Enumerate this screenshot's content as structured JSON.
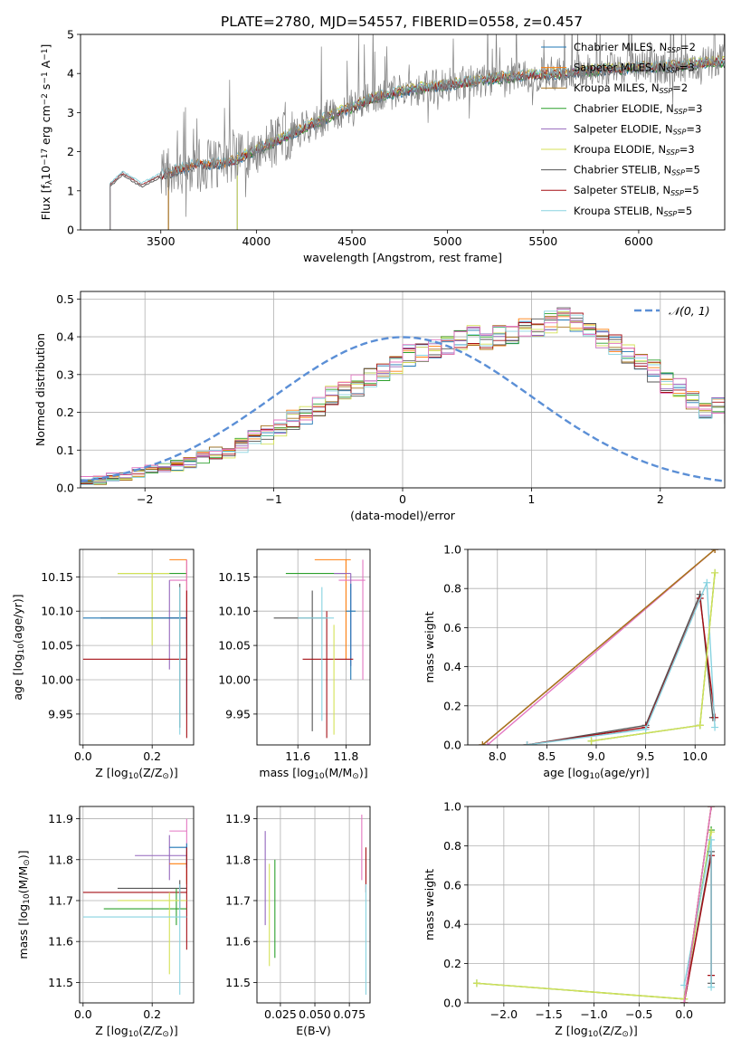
{
  "figure": {
    "title": "PLATE=2780, MJD=54557, FIBERID=0558, z=0.457"
  },
  "chart_data": [
    {
      "id": "spectrum",
      "type": "line",
      "xlabel": "wavelength [Angstrom, rest frame]",
      "ylabel_parts": [
        "Flux [f",
        "λ",
        "10",
        "−17",
        " erg cm",
        "−2",
        " s",
        "−1",
        " A",
        "−1",
        "]"
      ],
      "xlim": [
        3080,
        6450
      ],
      "ylim": [
        0,
        5
      ],
      "xticks": [
        3500,
        4000,
        4500,
        5000,
        5500,
        6000
      ],
      "yticks": [
        0,
        1,
        2,
        3,
        4,
        5
      ],
      "grid": false,
      "legend_position": "right",
      "data_trace": {
        "name": "",
        "color": "#808080",
        "continuum_anchors": [
          [
            3235,
            1.15
          ],
          [
            3300,
            1.45
          ],
          [
            3400,
            1.15
          ],
          [
            3500,
            1.4
          ],
          [
            3700,
            1.7
          ],
          [
            3850,
            1.7
          ],
          [
            4000,
            2.05
          ],
          [
            4200,
            2.5
          ],
          [
            4400,
            2.95
          ],
          [
            4600,
            3.35
          ],
          [
            4800,
            3.6
          ],
          [
            5000,
            3.7
          ],
          [
            5200,
            3.85
          ],
          [
            5400,
            3.95
          ],
          [
            5600,
            4.0
          ],
          [
            5800,
            4.1
          ],
          [
            6000,
            4.15
          ],
          [
            6200,
            4.2
          ],
          [
            6400,
            4.3
          ]
        ],
        "noise_start": 3500
      },
      "series": [
        {
          "name": "Chabrier MILES, N",
          "sub": "SSP",
          "suffix": "=2",
          "color": "#1f77b4",
          "start": 3540
        },
        {
          "name": "Salpeter MILES, N",
          "sub": "SSP",
          "suffix": "=3",
          "color": "#ff7f0e",
          "start": 3540
        },
        {
          "name": "Kroupa MILES, N",
          "sub": "SSP",
          "suffix": "=2",
          "color": "#a8731e",
          "start": 3540
        },
        {
          "name": "Chabrier ELODIE, N",
          "sub": "SSP",
          "suffix": "=3",
          "color": "#2ca02c",
          "start": 3900
        },
        {
          "name": "Salpeter ELODIE, N",
          "sub": "SSP",
          "suffix": "=3",
          "color": "#9467bd",
          "start": 3900
        },
        {
          "name": "Kroupa ELODIE, N",
          "sub": "SSP",
          "suffix": "=3",
          "color": "#d4e157",
          "start": 3900
        },
        {
          "name": "Chabrier STELIB, N",
          "sub": "SSP",
          "suffix": "=5",
          "color": "#555555",
          "start": 3235
        },
        {
          "name": "Salpeter STELIB, N",
          "sub": "SSP",
          "suffix": "=5",
          "color": "#a50f15",
          "start": 3235
        },
        {
          "name": "Kroupa STELIB, N",
          "sub": "SSP",
          "suffix": "=5",
          "color": "#88d3e0",
          "start": 3235
        }
      ]
    },
    {
      "id": "residuals",
      "type": "step",
      "xlabel": "(data-model)/error",
      "ylabel": "Normed distribution",
      "xlim": [
        -2.5,
        2.5
      ],
      "ylim": [
        0,
        0.52
      ],
      "xticks": [
        -2,
        -1,
        0,
        1,
        2
      ],
      "yticks": [
        0.0,
        0.1,
        0.2,
        0.3,
        0.4,
        0.5
      ],
      "grid": true,
      "legend_position": "top-right",
      "reference": {
        "name": "𝒩(0, 1)",
        "mean": 0,
        "sigma": 1,
        "color": "#5b8fd6"
      },
      "bin_width": 0.1,
      "base_histogram": [
        0.02,
        0.02,
        0.03,
        0.03,
        0.04,
        0.05,
        0.05,
        0.06,
        0.07,
        0.08,
        0.09,
        0.1,
        0.11,
        0.13,
        0.14,
        0.16,
        0.18,
        0.19,
        0.21,
        0.24,
        0.26,
        0.27,
        0.29,
        0.31,
        0.33,
        0.35,
        0.36,
        0.37,
        0.38,
        0.39,
        0.4,
        0.39,
        0.4,
        0.41,
        0.42,
        0.43,
        0.44,
        0.45,
        0.44,
        0.43,
        0.4,
        0.38,
        0.36,
        0.34,
        0.31,
        0.28,
        0.26,
        0.23,
        0.21,
        0.21,
        0.2,
        0.19,
        0.18,
        0.16,
        0.14,
        0.12,
        0.1,
        0.09,
        0.08,
        0.07,
        0.06,
        0.05,
        0.05,
        0.04,
        0.04,
        0.03,
        0.03,
        0.03,
        0.03,
        0.02
      ]
    },
    {
      "id": "age-vs-Z",
      "type": "errorbar",
      "xlabel_parts": [
        "Z [log",
        "10",
        "(Z/Z",
        "⊙",
        ")]"
      ],
      "ylabel_parts": [
        "age  [log",
        "10",
        "(age/yr)]"
      ],
      "xlim": [
        -0.01,
        0.32
      ],
      "ylim": [
        9.905,
        10.19
      ],
      "xticks": [
        0.0,
        0.2
      ],
      "yticks": [
        9.95,
        10.0,
        10.05,
        10.1,
        10.15
      ],
      "grid": true,
      "points": [
        {
          "color": "#2ca02c",
          "x": 0.2,
          "xlo": 0.1,
          "xhi": 0.3,
          "y": 10.155,
          "ylo": 10.155,
          "yhi": 10.155
        },
        {
          "color": "#d4e157",
          "x": 0.2,
          "xlo": 0.1,
          "xhi": 0.25,
          "y": 10.155,
          "ylo": 10.05,
          "yhi": 10.155
        },
        {
          "color": "#ff7f0e",
          "x": 0.3,
          "xlo": 0.25,
          "xhi": 0.3,
          "y": 10.175,
          "ylo": 10.05,
          "yhi": 10.175
        },
        {
          "color": "#e377c2",
          "x": 0.3,
          "xlo": 0.25,
          "xhi": 0.3,
          "y": 10.145,
          "ylo": 10.06,
          "yhi": 10.175
        },
        {
          "color": "#9467bd",
          "x": 0.25,
          "xlo": 0.25,
          "xhi": 0.3,
          "y": 10.09,
          "ylo": 10.015,
          "yhi": 10.145
        },
        {
          "color": "#555555",
          "x": 0.28,
          "xlo": 0.05,
          "xhi": 0.3,
          "y": 10.09,
          "ylo": 9.93,
          "yhi": 10.14
        },
        {
          "color": "#1f77b4",
          "x": 0.3,
          "xlo": 0.0,
          "xhi": 0.3,
          "y": 10.09,
          "ylo": 9.95,
          "yhi": 10.1
        },
        {
          "color": "#a50f15",
          "x": 0.3,
          "xlo": 0.0,
          "xhi": 0.3,
          "y": 10.03,
          "ylo": 9.915,
          "yhi": 10.13
        },
        {
          "color": "#88d3e0",
          "x": 0.28,
          "xlo": 0.28,
          "xhi": 0.28,
          "y": 10.0,
          "ylo": 9.92,
          "yhi": 10.135
        }
      ]
    },
    {
      "id": "age-vs-mass",
      "type": "errorbar",
      "xlabel_parts": [
        "mass [log",
        "10",
        "(M/M",
        "⊙",
        ")]"
      ],
      "ylabel": "",
      "xlim": [
        11.43,
        11.9
      ],
      "ylim": [
        9.905,
        10.19
      ],
      "xticks": [
        11.6,
        11.8
      ],
      "yticks": [
        9.95,
        10.0,
        10.05,
        10.1,
        10.15
      ],
      "grid": true,
      "points": [
        {
          "color": "#2ca02c",
          "x": 11.75,
          "xlo": 11.55,
          "xhi": 11.8,
          "y": 10.155,
          "ylo": 10.155,
          "yhi": 10.155
        },
        {
          "color": "#ff7f0e",
          "x": 11.8,
          "xlo": 11.67,
          "xhi": 11.82,
          "y": 10.175,
          "ylo": 10.03,
          "yhi": 10.175
        },
        {
          "color": "#e377c2",
          "x": 11.87,
          "xlo": 11.77,
          "xhi": 11.88,
          "y": 10.145,
          "ylo": 10.0,
          "yhi": 10.175
        },
        {
          "color": "#9467bd",
          "x": 11.82,
          "xlo": 11.75,
          "xhi": 11.82,
          "y": 10.155,
          "ylo": 10.02,
          "yhi": 10.155
        },
        {
          "color": "#1f77b4",
          "x": 11.82,
          "xlo": 11.8,
          "xhi": 11.84,
          "y": 10.1,
          "ylo": 10.0,
          "yhi": 10.14
        },
        {
          "color": "#555555",
          "x": 11.66,
          "xlo": 11.5,
          "xhi": 11.72,
          "y": 10.09,
          "ylo": 9.925,
          "yhi": 10.13
        },
        {
          "color": "#a50f15",
          "x": 11.72,
          "xlo": 11.62,
          "xhi": 11.83,
          "y": 10.03,
          "ylo": 9.915,
          "yhi": 10.1
        },
        {
          "color": "#88d3e0",
          "x": 11.7,
          "xlo": 11.6,
          "xhi": 11.75,
          "y": 10.09,
          "ylo": 9.94,
          "yhi": 10.135
        },
        {
          "color": "#d4e157",
          "x": 11.75,
          "xlo": 11.75,
          "xhi": 11.75,
          "y": 10.0,
          "ylo": 9.92,
          "yhi": 10.08
        }
      ]
    },
    {
      "id": "weight-vs-age",
      "type": "line",
      "xlabel_parts": [
        "age  [log",
        "10",
        "(age/yr)]"
      ],
      "ylabel": "mass weight",
      "xlim": [
        7.7,
        10.3
      ],
      "ylim": [
        0,
        1
      ],
      "xticks": [
        8.0,
        8.5,
        9.0,
        9.5,
        10.0
      ],
      "yticks": [
        0.0,
        0.2,
        0.4,
        0.6,
        0.8,
        1.0
      ],
      "grid": true,
      "series": [
        {
          "color": "#e377c2",
          "points": [
            [
              7.9,
              0.0
            ],
            [
              10.2,
              1.0
            ]
          ]
        },
        {
          "color": "#1f77b4",
          "points": [
            [
              7.85,
              0.0
            ],
            [
              10.2,
              1.0
            ]
          ]
        },
        {
          "color": "#ff7f0e",
          "points": [
            [
              7.85,
              0.0
            ],
            [
              10.2,
              1.0
            ]
          ]
        },
        {
          "color": "#a8731e",
          "points": [
            [
              7.85,
              0.0
            ],
            [
              10.2,
              1.0
            ]
          ]
        },
        {
          "color": "#555555",
          "points": [
            [
              8.3,
              0.0
            ],
            [
              9.5,
              0.1
            ],
            [
              10.05,
              0.77
            ],
            [
              10.18,
              0.14
            ]
          ]
        },
        {
          "color": "#a50f15",
          "points": [
            [
              8.3,
              0.0
            ],
            [
              9.5,
              0.09
            ],
            [
              10.05,
              0.75
            ],
            [
              10.2,
              0.14
            ]
          ]
        },
        {
          "color": "#88d3e0",
          "points": [
            [
              8.3,
              0.0
            ],
            [
              9.5,
              0.08
            ],
            [
              10.12,
              0.83
            ],
            [
              10.2,
              0.09
            ]
          ]
        },
        {
          "color": "#2ca02c",
          "points": [
            [
              8.95,
              0.02
            ],
            [
              10.05,
              0.1
            ],
            [
              10.2,
              0.88
            ]
          ]
        },
        {
          "color": "#d4e157",
          "points": [
            [
              8.95,
              0.02
            ],
            [
              10.05,
              0.1
            ],
            [
              10.2,
              0.88
            ]
          ]
        }
      ]
    },
    {
      "id": "mass-vs-Z",
      "type": "errorbar",
      "xlabel_parts": [
        "Z [log",
        "10",
        "(Z/Z",
        "⊙",
        ")]"
      ],
      "ylabel_parts": [
        "mass [log",
        "10",
        "(M/M",
        "⊙",
        ")]"
      ],
      "xlim": [
        -0.01,
        0.32
      ],
      "ylim": [
        11.45,
        11.93
      ],
      "xticks": [
        0.0,
        0.2
      ],
      "yticks": [
        11.5,
        11.6,
        11.7,
        11.8,
        11.9
      ],
      "grid": true,
      "points": [
        {
          "color": "#e377c2",
          "x": 0.3,
          "xlo": 0.25,
          "xhi": 0.3,
          "y": 11.87,
          "ylo": 11.75,
          "yhi": 11.9
        },
        {
          "color": "#9467bd",
          "x": 0.25,
          "xlo": 0.15,
          "xhi": 0.3,
          "y": 11.81,
          "ylo": 11.75,
          "yhi": 11.86
        },
        {
          "color": "#ff7f0e",
          "x": 0.3,
          "xlo": 0.25,
          "xhi": 0.3,
          "y": 11.79,
          "ylo": 11.74,
          "yhi": 11.82
        },
        {
          "color": "#1f77b4",
          "x": 0.3,
          "xlo": 0.25,
          "xhi": 0.3,
          "y": 11.83,
          "ylo": 11.78,
          "yhi": 11.84
        },
        {
          "color": "#555555",
          "x": 0.28,
          "xlo": 0.1,
          "xhi": 0.3,
          "y": 11.73,
          "ylo": 11.68,
          "yhi": 11.75
        },
        {
          "color": "#a50f15",
          "x": 0.3,
          "xlo": 0.0,
          "xhi": 0.3,
          "y": 11.72,
          "ylo": 11.58,
          "yhi": 11.83
        },
        {
          "color": "#2ca02c",
          "x": 0.27,
          "xlo": 0.06,
          "xhi": 0.3,
          "y": 11.68,
          "ylo": 11.64,
          "yhi": 11.73
        },
        {
          "color": "#d4e157",
          "x": 0.25,
          "xlo": 0.1,
          "xhi": 0.3,
          "y": 11.7,
          "ylo": 11.52,
          "yhi": 11.72
        },
        {
          "color": "#88d3e0",
          "x": 0.28,
          "xlo": 0.0,
          "xhi": 0.3,
          "y": 11.66,
          "ylo": 11.47,
          "yhi": 11.74
        }
      ]
    },
    {
      "id": "mass-vs-ebv",
      "type": "errorbar",
      "xlabel": "E(B-V)",
      "ylabel": "",
      "xlim": [
        0.008,
        0.09
      ],
      "ylim": [
        11.45,
        11.93
      ],
      "xticks": [
        0.025,
        0.05,
        0.075
      ],
      "yticks": [
        11.5,
        11.6,
        11.7,
        11.8,
        11.9
      ],
      "grid": true,
      "points": [
        {
          "color": "#9467bd",
          "x": 0.014,
          "ylo": 11.64,
          "yhi": 11.87
        },
        {
          "color": "#d4e157",
          "x": 0.017,
          "ylo": 11.54,
          "yhi": 11.79
        },
        {
          "color": "#2ca02c",
          "x": 0.021,
          "ylo": 11.56,
          "yhi": 11.8
        },
        {
          "color": "#e377c2",
          "x": 0.084,
          "ylo": 11.75,
          "yhi": 11.91
        },
        {
          "color": "#a50f15",
          "x": 0.087,
          "ylo": 11.72,
          "yhi": 11.83
        },
        {
          "color": "#88d3e0",
          "x": 0.087,
          "ylo": 11.47,
          "yhi": 11.74
        }
      ]
    },
    {
      "id": "weight-vs-Z",
      "type": "line",
      "xlabel_parts": [
        "Z [log",
        "10",
        "(Z/Z",
        "⊙",
        ")]"
      ],
      "ylabel": "mass weight",
      "xlim": [
        -2.4,
        0.45
      ],
      "ylim": [
        0,
        1
      ],
      "xticks": [
        -2.0,
        -1.5,
        -1.0,
        -0.5,
        0.0
      ],
      "yticks": [
        0.0,
        0.2,
        0.4,
        0.6,
        0.8,
        1.0
      ],
      "grid": true,
      "series": [
        {
          "color": "#2ca02c",
          "points": [
            [
              -2.3,
              0.1
            ],
            [
              0.0,
              0.02
            ],
            [
              0.3,
              0.88
            ]
          ]
        },
        {
          "color": "#d4e157",
          "points": [
            [
              -2.3,
              0.1
            ],
            [
              0.0,
              0.02
            ],
            [
              0.3,
              0.87
            ]
          ]
        },
        {
          "color": "#555555",
          "points": [
            [
              0.0,
              0.0
            ],
            [
              0.3,
              0.77
            ],
            [
              0.3,
              0.1
            ]
          ]
        },
        {
          "color": "#a50f15",
          "points": [
            [
              0.0,
              0.0
            ],
            [
              0.3,
              0.75
            ],
            [
              0.3,
              0.14
            ]
          ]
        },
        {
          "color": "#88d3e0",
          "points": [
            [
              0.0,
              0.09
            ],
            [
              0.3,
              0.83
            ],
            [
              0.3,
              0.08
            ]
          ]
        },
        {
          "color": "#1f77b4",
          "points": [
            [
              0.0,
              0.0
            ],
            [
              0.3,
              1.0
            ]
          ]
        },
        {
          "color": "#ff7f0e",
          "points": [
            [
              0.0,
              0.0
            ],
            [
              0.3,
              1.0
            ]
          ]
        },
        {
          "color": "#a8731e",
          "points": [
            [
              0.0,
              0.0
            ],
            [
              0.3,
              1.0
            ]
          ]
        },
        {
          "color": "#e377c2",
          "points": [
            [
              0.0,
              0.0
            ],
            [
              0.3,
              1.0
            ]
          ]
        }
      ]
    }
  ]
}
